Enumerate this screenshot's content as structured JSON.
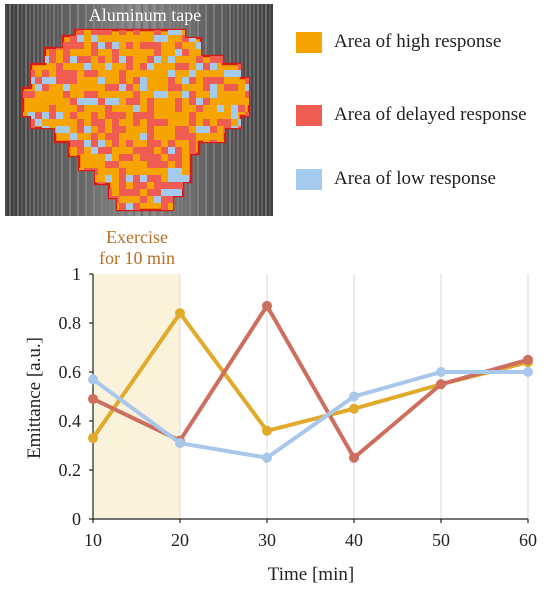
{
  "image_panel": {
    "label": "Aluminum tape"
  },
  "legend": [
    {
      "label": "Area of high response",
      "color": "#f5a400"
    },
    {
      "label": "Area of delayed response",
      "color": "#ef5c52"
    },
    {
      "label": "Area of low response",
      "color": "#a4caee"
    }
  ],
  "chart_data": {
    "type": "line",
    "x": [
      10,
      20,
      30,
      40,
      50,
      60
    ],
    "series": [
      {
        "name": "Area of high response",
        "color": "#e0aa2a",
        "values": [
          0.33,
          0.84,
          0.36,
          0.45,
          0.55,
          0.64
        ]
      },
      {
        "name": "Area of delayed response",
        "color": "#cd6e5e",
        "values": [
          0.49,
          0.32,
          0.87,
          0.25,
          0.55,
          0.65
        ]
      },
      {
        "name": "Area of low response",
        "color": "#a8c7ea",
        "values": [
          0.57,
          0.31,
          0.25,
          0.5,
          0.6,
          0.6
        ]
      }
    ],
    "xlabel": "Time [min]",
    "ylabel": "Emittance [a.u.]",
    "xlim": [
      10,
      60
    ],
    "ylim": [
      0,
      1
    ],
    "xticks": [
      "10",
      "20",
      "30",
      "40",
      "50",
      "60"
    ],
    "yticks": [
      "0",
      "0.2",
      "0.4",
      "0.6",
      "0.8",
      "1"
    ],
    "grid": "vertical",
    "annotation": {
      "text_line1": "Exercise",
      "text_line2": "for 10 min",
      "x_range": [
        10,
        20
      ],
      "color": "#b86e25",
      "fill": "#fbf2dc"
    }
  }
}
